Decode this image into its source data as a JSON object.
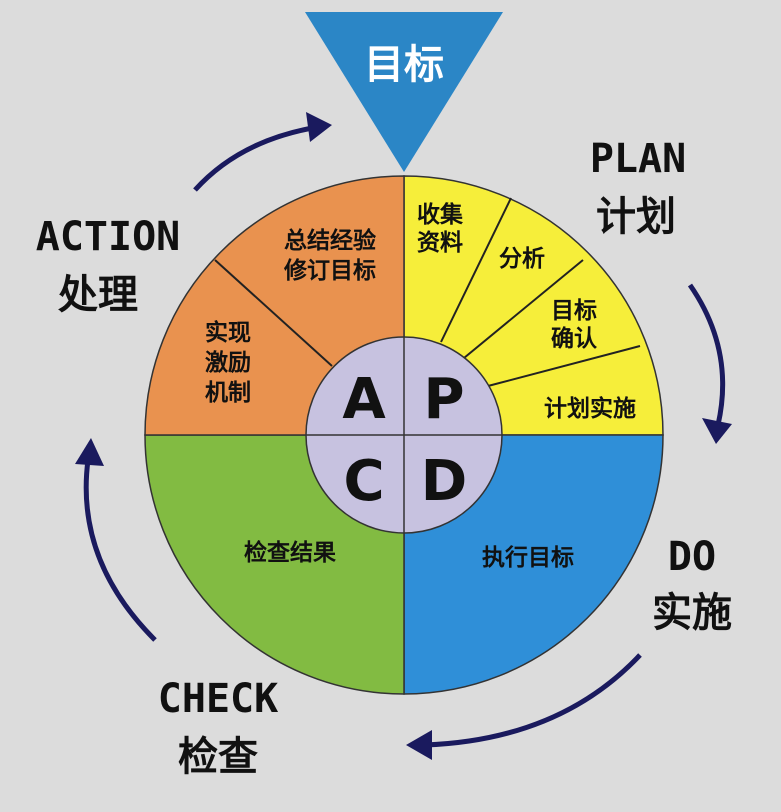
{
  "goal": {
    "label": "目标"
  },
  "phases": {
    "plan": {
      "en": "PLAN",
      "cn": "计划"
    },
    "do": {
      "en": "DO",
      "cn": "实施"
    },
    "check": {
      "en": "CHECK",
      "cn": "检查"
    },
    "action": {
      "en": "ACTION",
      "cn": "处理"
    }
  },
  "center_letters": {
    "a": "A",
    "p": "P",
    "c": "C",
    "d": "D"
  },
  "plan_segments": [
    {
      "lines": [
        "收集",
        "资料"
      ]
    },
    {
      "lines": [
        "分析"
      ]
    },
    {
      "lines": [
        "目标",
        "确认"
      ]
    },
    {
      "lines": [
        "计划实施"
      ]
    }
  ],
  "action_segments": [
    {
      "lines": [
        "总结经验",
        "修订目标"
      ]
    },
    {
      "lines": [
        "实现",
        "激励",
        "机制"
      ]
    }
  ],
  "do_segment": {
    "label": "执行目标"
  },
  "check_segment": {
    "label": "检查结果"
  },
  "colors": {
    "background": "#dcdcdc",
    "plan": "#f6ee3a",
    "do": "#2f8fd8",
    "check": "#82bb42",
    "action": "#e9924f",
    "center": "#c7c2e0",
    "goal_triangle": "#2b86c6",
    "arrows": "#1a1a5e"
  }
}
